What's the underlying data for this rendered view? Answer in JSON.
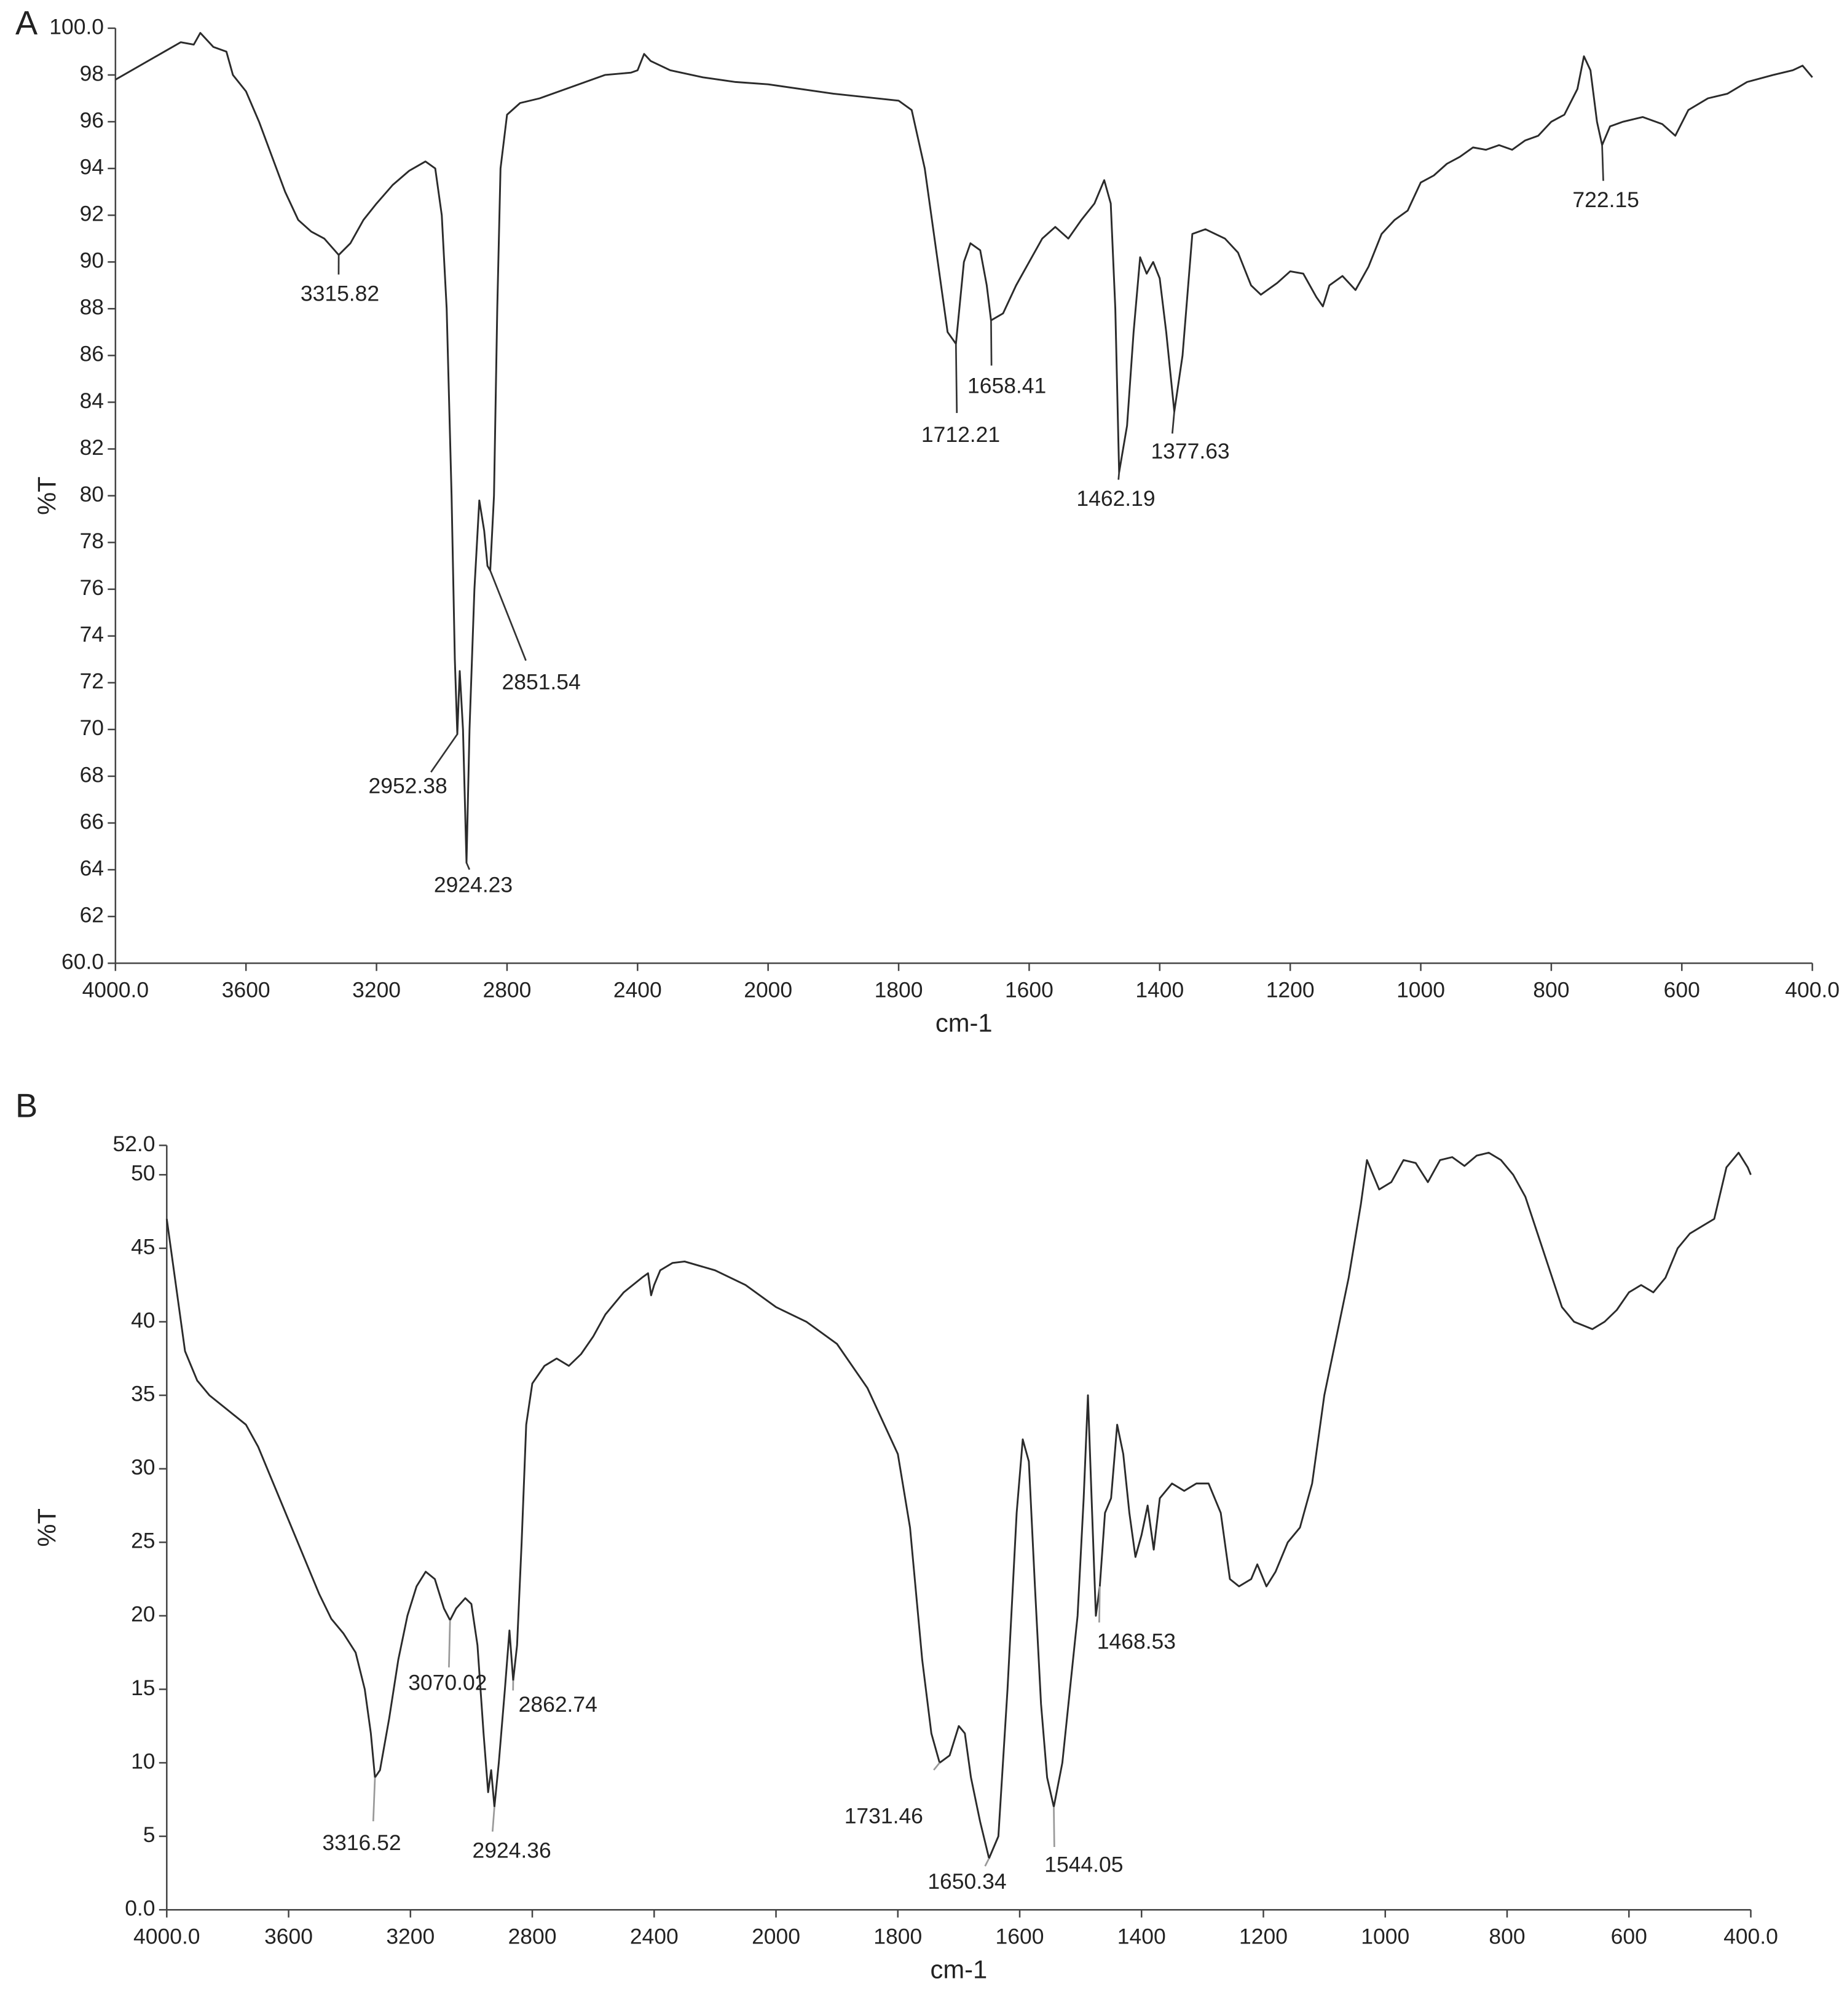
{
  "chart_data": [
    {
      "type": "line",
      "panel": "A",
      "y_label": "%T",
      "x_label": "cm-1",
      "color": "#2b2b2b",
      "xlim": [
        4000,
        400
      ],
      "ylim": [
        60,
        100
      ],
      "xticks": [
        {
          "value": 4000,
          "label": "4000.0"
        },
        3600,
        3200,
        2800,
        2400,
        2000,
        1800,
        1600,
        1400,
        1200,
        1000,
        800,
        600,
        {
          "value": 400,
          "label": "400.0"
        }
      ],
      "yticks": [
        {
          "value": 60,
          "label": "60.0"
        },
        62,
        64,
        66,
        68,
        70,
        72,
        74,
        76,
        78,
        80,
        82,
        84,
        86,
        88,
        90,
        92,
        94,
        96,
        98,
        {
          "value": 100,
          "label": "100.0"
        }
      ],
      "x": [
        4000,
        3900,
        3850,
        3800,
        3760,
        3740,
        3700,
        3660,
        3640,
        3600,
        3560,
        3520,
        3480,
        3440,
        3400,
        3360,
        3315.82,
        3280,
        3240,
        3200,
        3150,
        3100,
        3050,
        3020,
        3000,
        2985,
        2970,
        2960,
        2952.38,
        2945,
        2935,
        2924.23,
        2915,
        2900,
        2885,
        2870,
        2860,
        2851.54,
        2840,
        2830,
        2820,
        2800,
        2760,
        2700,
        2600,
        2500,
        2420,
        2400,
        2380,
        2360,
        2300,
        2200,
        2100,
        2000,
        1900,
        1800,
        1780,
        1760,
        1740,
        1725,
        1712.21,
        1700,
        1690,
        1675,
        1665,
        1658.41,
        1640,
        1620,
        1600,
        1580,
        1560,
        1540,
        1520,
        1500,
        1485,
        1475,
        1468,
        1462.19,
        1450,
        1440,
        1430,
        1420,
        1410,
        1400,
        1390,
        1377.63,
        1365,
        1350,
        1330,
        1300,
        1280,
        1260,
        1245,
        1220,
        1200,
        1180,
        1160,
        1150,
        1140,
        1120,
        1100,
        1080,
        1060,
        1040,
        1020,
        1000,
        980,
        960,
        940,
        920,
        900,
        880,
        860,
        840,
        820,
        800,
        780,
        760,
        750,
        740,
        730,
        722.15,
        710,
        690,
        660,
        630,
        610,
        590,
        560,
        530,
        500,
        460,
        430,
        415,
        400
      ],
      "values": [
        97.8,
        98.6,
        99.0,
        99.4,
        99.3,
        99.8,
        99.2,
        99.0,
        98.0,
        97.3,
        96.0,
        94.5,
        93.0,
        91.8,
        91.3,
        91.0,
        90.3,
        90.8,
        91.8,
        92.5,
        93.3,
        93.9,
        94.3,
        94.0,
        92,
        88,
        80,
        73,
        69.8,
        72.5,
        70,
        64.3,
        70,
        76,
        79.8,
        78.5,
        77,
        76.8,
        80,
        88,
        94,
        96.3,
        96.8,
        97.0,
        97.5,
        98,
        98.1,
        98.2,
        98.9,
        98.6,
        98.2,
        97.9,
        97.7,
        97.6,
        97.2,
        96.9,
        96.5,
        94,
        90,
        87,
        86.5,
        90,
        90.8,
        90.5,
        89,
        87.5,
        87.8,
        89,
        90,
        91,
        91.5,
        91,
        91.8,
        92.5,
        93.5,
        92.5,
        88,
        81,
        83,
        87,
        90.2,
        89.5,
        90,
        89.3,
        87,
        83.6,
        86,
        91.2,
        91.4,
        91,
        90.4,
        89,
        88.6,
        89.1,
        89.6,
        89.5,
        88.5,
        88.1,
        89,
        89.4,
        88.8,
        89.8,
        91.2,
        91.8,
        92.2,
        93.4,
        93.7,
        94.2,
        94.5,
        94.9,
        94.8,
        95.0,
        94.8,
        95.2,
        95.4,
        96,
        96.3,
        97.4,
        98.8,
        98.2,
        96,
        95,
        95.8,
        96.0,
        96.2,
        95.9,
        95.4,
        96.5,
        97.0,
        97.2,
        97.7,
        98.0,
        98.2,
        98.4,
        97.9
      ],
      "annotations": [
        {
          "x": 3315.82,
          "y": 90.3,
          "label": "3315.82"
        },
        {
          "x": 2952.38,
          "y": 69.8,
          "label": "2952.38"
        },
        {
          "x": 2924.23,
          "y": 64.3,
          "label": "2924.23"
        },
        {
          "x": 2851.54,
          "y": 76.8,
          "label": "2851.54"
        },
        {
          "x": 1712.21,
          "y": 86.5,
          "label": "1712.21"
        },
        {
          "x": 1658.41,
          "y": 87.5,
          "label": "1658.41"
        },
        {
          "x": 1462.19,
          "y": 81,
          "label": "1462.19"
        },
        {
          "x": 1377.63,
          "y": 83.6,
          "label": "1377.63"
        },
        {
          "x": 722.15,
          "y": 95,
          "label": "722.15"
        }
      ]
    },
    {
      "type": "line",
      "panel": "B",
      "y_label": "%T",
      "x_label": "cm-1",
      "color": "#2b2b2b",
      "xlim": [
        4000,
        400
      ],
      "ylim": [
        0,
        52
      ],
      "xticks": [
        {
          "value": 4000,
          "label": "4000.0"
        },
        3600,
        3200,
        2800,
        2400,
        2000,
        1800,
        1600,
        1400,
        1200,
        1000,
        800,
        600,
        {
          "value": 400,
          "label": "400.0"
        }
      ],
      "yticks": [
        {
          "value": 0,
          "label": "0.0"
        },
        5,
        10,
        15,
        20,
        25,
        30,
        35,
        40,
        45,
        50,
        {
          "value": 52,
          "label": "52.0"
        }
      ],
      "x": [
        4000,
        3980,
        3960,
        3940,
        3920,
        3900,
        3860,
        3800,
        3740,
        3700,
        3660,
        3620,
        3580,
        3540,
        3500,
        3460,
        3420,
        3380,
        3350,
        3330,
        3316.52,
        3300,
        3270,
        3240,
        3210,
        3180,
        3150,
        3120,
        3090,
        3070.02,
        3050,
        3020,
        3000,
        2980,
        2960,
        2945,
        2935,
        2924.36,
        2910,
        2890,
        2875,
        2862.74,
        2850,
        2835,
        2820,
        2800,
        2760,
        2720,
        2680,
        2640,
        2600,
        2560,
        2500,
        2440,
        2420,
        2410,
        2400,
        2380,
        2340,
        2300,
        2200,
        2100,
        2000,
        1950,
        1900,
        1850,
        1800,
        1780,
        1760,
        1745,
        1731.46,
        1715,
        1700,
        1690,
        1680,
        1665,
        1650.34,
        1635,
        1620,
        1605,
        1595,
        1585,
        1575,
        1565,
        1555,
        1544.05,
        1530,
        1515,
        1505,
        1495,
        1488,
        1482,
        1475,
        1468.53,
        1460,
        1450,
        1440,
        1430,
        1420,
        1410,
        1400,
        1390,
        1380,
        1370,
        1350,
        1330,
        1310,
        1290,
        1270,
        1255,
        1240,
        1220,
        1210,
        1195,
        1180,
        1160,
        1140,
        1120,
        1100,
        1080,
        1060,
        1040,
        1030,
        1020,
        1010,
        990,
        970,
        950,
        930,
        910,
        890,
        870,
        850,
        830,
        810,
        790,
        770,
        750,
        730,
        710,
        690,
        660,
        640,
        620,
        600,
        580,
        560,
        540,
        520,
        500,
        480,
        460,
        440,
        420,
        405,
        400
      ],
      "values": [
        47,
        44,
        41,
        38,
        37,
        36,
        35,
        34,
        33,
        31.5,
        29.5,
        27.5,
        25.5,
        23.5,
        21.5,
        19.8,
        18.8,
        17.5,
        15,
        12,
        9,
        9.5,
        13,
        17,
        20,
        22,
        23,
        22.5,
        20.5,
        19.7,
        20.5,
        21.2,
        20.8,
        18,
        12,
        8,
        9.5,
        7,
        10,
        15,
        19,
        15.6,
        18,
        25,
        33,
        35.8,
        37,
        37.5,
        37,
        37.8,
        39,
        40.5,
        42,
        43,
        43.3,
        41.8,
        42.5,
        43.5,
        44,
        44.1,
        43.5,
        42.5,
        41,
        40,
        38.5,
        35.5,
        31,
        26,
        17,
        12,
        10,
        10.5,
        12.5,
        12,
        9,
        6,
        3.5,
        5,
        15,
        27,
        32,
        30.5,
        22,
        14,
        9,
        7,
        10,
        16,
        20,
        28,
        35,
        28,
        20,
        22,
        27,
        28,
        33,
        31,
        27,
        24,
        25.5,
        27.5,
        24.5,
        28,
        29,
        28.5,
        29,
        29,
        27,
        22.5,
        22,
        22.5,
        23.5,
        22,
        23,
        25,
        26,
        29,
        35,
        39,
        43,
        48,
        51,
        50,
        49,
        49.5,
        51,
        50.8,
        49.5,
        51,
        51.2,
        50.6,
        51.3,
        51.5,
        51,
        50,
        48.5,
        46,
        43.5,
        41,
        40,
        39.5,
        40,
        40.8,
        42,
        42.5,
        42,
        43,
        45,
        46,
        46.5,
        47,
        50.5,
        51.5,
        50.5,
        50
      ],
      "annotations": [
        {
          "x": 3316.52,
          "y": 9,
          "label": "3316.52"
        },
        {
          "x": 3070.02,
          "y": 19.7,
          "label": "3070.02"
        },
        {
          "x": 2924.36,
          "y": 7,
          "label": "2924.36"
        },
        {
          "x": 2862.74,
          "y": 15.6,
          "label": "2862.74"
        },
        {
          "x": 1731.46,
          "y": 10,
          "label": "1731.46"
        },
        {
          "x": 1650.34,
          "y": 3.5,
          "label": "1650.34"
        },
        {
          "x": 1544.05,
          "y": 7,
          "label": "1544.05"
        },
        {
          "x": 1468.53,
          "y": 22,
          "label": "1468.53"
        }
      ]
    }
  ]
}
